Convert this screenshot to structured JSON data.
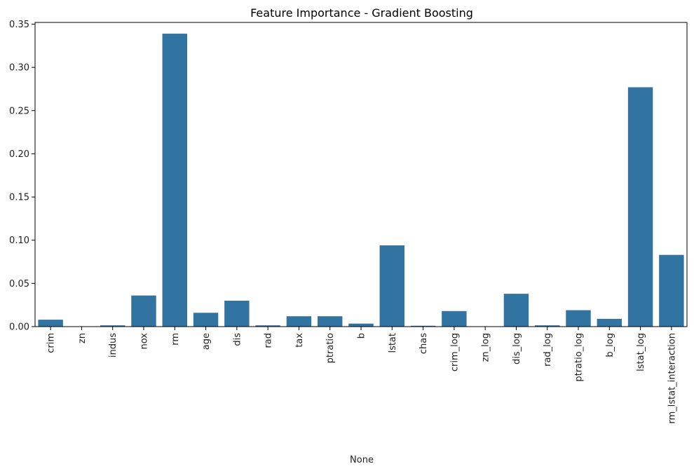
{
  "chart_data": {
    "type": "bar",
    "title": "Feature Importance - Gradient Boosting",
    "xlabel": "None",
    "ylabel": "",
    "ylim": [
      0,
      0.352
    ],
    "yticks": [
      "0.00",
      "0.05",
      "0.10",
      "0.15",
      "0.20",
      "0.25",
      "0.30",
      "0.35"
    ],
    "bar_color": "#3274a1",
    "grid": false,
    "legend": "none",
    "categories": [
      "crim",
      "zn",
      "indus",
      "nox",
      "rm",
      "age",
      "dis",
      "rad",
      "tax",
      "ptratio",
      "b",
      "lstat",
      "chas",
      "crim_log",
      "zn_log",
      "dis_log",
      "rad_log",
      "ptratio_log",
      "b_log",
      "lstat_log",
      "rm_lstat_interaction"
    ],
    "values": [
      0.008,
      0.0,
      0.0015,
      0.036,
      0.339,
      0.016,
      0.03,
      0.0015,
      0.012,
      0.012,
      0.0035,
      0.094,
      0.001,
      0.018,
      0.0,
      0.038,
      0.0015,
      0.019,
      0.009,
      0.277,
      0.083
    ]
  }
}
